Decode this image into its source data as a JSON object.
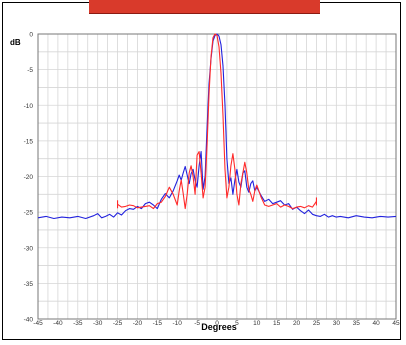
{
  "top_bar": {
    "color": "#d93a2b"
  },
  "chart_data": {
    "type": "line",
    "title": "",
    "xlabel": "Degrees",
    "ylabel": "dB",
    "xlim": [
      -45,
      45
    ],
    "ylim": [
      -40,
      0
    ],
    "xticks": [
      -45,
      -40,
      -35,
      -30,
      -25,
      -20,
      -15,
      -10,
      -5,
      0,
      5,
      10,
      15,
      20,
      25,
      30,
      35,
      40,
      45
    ],
    "yticks": [
      0,
      -5,
      -10,
      -15,
      -20,
      -25,
      -30,
      -35,
      -40
    ],
    "grid": true,
    "series": [
      {
        "color": "#2222dd",
        "x": [
          -45,
          -43,
          -41,
          -39,
          -37,
          -35,
          -33,
          -31,
          -30,
          -29,
          -28,
          -27,
          -26,
          -25,
          -24,
          -23,
          -22,
          -21,
          -20,
          -19,
          -18,
          -17,
          -16,
          -15,
          -14,
          -13,
          -12,
          -11,
          -10,
          -9.5,
          -9,
          -8.5,
          -8,
          -7.5,
          -7,
          -6.5,
          -6,
          -5.5,
          -5,
          -4.5,
          -4,
          -3.5,
          -3,
          -2.5,
          -2,
          -1.5,
          -1,
          -0.5,
          0,
          0.5,
          1,
          1.5,
          2,
          2.5,
          3,
          3.5,
          4,
          4.5,
          5,
          5.5,
          6,
          6.5,
          7,
          7.5,
          8,
          8.5,
          9,
          9.5,
          10,
          11,
          12,
          13,
          14,
          15,
          16,
          17,
          18,
          19,
          20,
          21,
          22,
          23,
          24,
          25,
          26,
          27,
          28,
          29,
          30,
          31,
          33,
          35,
          37,
          39,
          41,
          43,
          45
        ],
        "y": [
          -25.8,
          -25.6,
          -25.9,
          -25.7,
          -25.8,
          -25.6,
          -25.9,
          -25.5,
          -25.2,
          -25.8,
          -25.6,
          -25.3,
          -25.7,
          -25.1,
          -25.4,
          -24.8,
          -24.5,
          -24.6,
          -24.2,
          -24.5,
          -23.8,
          -23.6,
          -24.0,
          -24.5,
          -23.2,
          -22.4,
          -23.0,
          -22.0,
          -20.6,
          -19.8,
          -20.5,
          -19.5,
          -18.6,
          -19.8,
          -21.0,
          -19.6,
          -19.0,
          -20.5,
          -21.5,
          -18.5,
          -16.5,
          -21.8,
          -20.0,
          -13.0,
          -7.0,
          -3.5,
          -1.0,
          -0.2,
          0.0,
          -0.3,
          -1.5,
          -4.5,
          -10.0,
          -17.5,
          -21.0,
          -20.2,
          -22.5,
          -20.5,
          -19.0,
          -20.8,
          -21.5,
          -19.5,
          -19.2,
          -21.5,
          -22.2,
          -21.0,
          -20.6,
          -22.0,
          -21.5,
          -22.6,
          -23.5,
          -23.2,
          -23.8,
          -23.6,
          -23.4,
          -24.0,
          -23.8,
          -24.6,
          -24.3,
          -24.8,
          -25.2,
          -24.7,
          -25.3,
          -25.5,
          -25.6,
          -25.3,
          -25.7,
          -25.5,
          -25.7,
          -25.6,
          -25.8,
          -25.5,
          -25.7,
          -25.8,
          -25.6,
          -25.7,
          -25.6
        ]
      },
      {
        "color": "#ff2a2a",
        "x": [
          -25,
          -24,
          -23,
          -22,
          -21,
          -20,
          -19,
          -18,
          -17,
          -16,
          -15,
          -14,
          -13,
          -12,
          -11,
          -10,
          -9.5,
          -9,
          -8.5,
          -8,
          -7.5,
          -7,
          -6.5,
          -6,
          -5.5,
          -5,
          -4.5,
          -4,
          -3.5,
          -3,
          -2.5,
          -2,
          -1.5,
          -1,
          -0.5,
          0,
          0.5,
          1,
          1.5,
          2,
          2.5,
          3,
          3.5,
          4,
          4.5,
          5,
          5.5,
          6,
          6.5,
          7,
          7.5,
          8,
          8.5,
          9,
          9.5,
          10,
          11,
          12,
          13,
          14,
          15,
          16,
          17,
          18,
          19,
          20,
          21,
          22,
          23,
          24,
          25
        ],
        "y": [
          -23.9,
          -24.3,
          -24.2,
          -24.0,
          -24.1,
          -24.4,
          -24.3,
          -24.2,
          -24.1,
          -24.5,
          -23.8,
          -23.6,
          -22.8,
          -21.5,
          -22.5,
          -24.0,
          -22.0,
          -20.5,
          -22.4,
          -24.5,
          -22.5,
          -19.5,
          -18.5,
          -20.0,
          -22.5,
          -17.0,
          -16.5,
          -19.5,
          -23.0,
          -21.5,
          -15.5,
          -8.5,
          -3.2,
          -0.5,
          0.0,
          -0.2,
          -1.8,
          -5.5,
          -11.5,
          -19.0,
          -23.0,
          -21.5,
          -18.5,
          -16.8,
          -19.0,
          -22.5,
          -24.0,
          -21.0,
          -19.5,
          -18.0,
          -19.5,
          -21.8,
          -22.5,
          -23.5,
          -22.0,
          -21.2,
          -22.8,
          -24.0,
          -24.2,
          -24.0,
          -23.8,
          -24.3,
          -24.0,
          -24.2,
          -24.5,
          -24.3,
          -24.2,
          -24.4,
          -24.1,
          -24.3,
          -23.5
        ]
      }
    ]
  }
}
